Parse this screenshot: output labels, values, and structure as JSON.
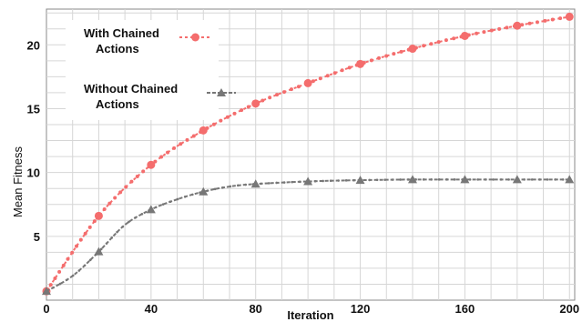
{
  "chart_data": {
    "type": "line",
    "title": "",
    "xlabel": "Iteration",
    "ylabel": "Mean Fitness",
    "xlim": [
      0,
      202
    ],
    "ylim": [
      0,
      22.8
    ],
    "xticks": [
      0,
      40,
      80,
      120,
      160,
      200
    ],
    "yticks": [
      5,
      10,
      15,
      20
    ],
    "grid": true,
    "legend_position": "top-left",
    "series": [
      {
        "name": "With Chained Actions",
        "color": "#f46d6d",
        "marker": "circle",
        "x": [
          0,
          20,
          40,
          60,
          80,
          100,
          120,
          140,
          160,
          180,
          200
        ],
        "y": [
          0.7,
          6.6,
          10.6,
          13.3,
          15.4,
          17.0,
          18.5,
          19.7,
          20.7,
          21.5,
          22.2
        ]
      },
      {
        "name": "Without Chained Actions",
        "color": "#777777",
        "marker": "triangle",
        "x": [
          0,
          10,
          20,
          30,
          40,
          50,
          60,
          70,
          80,
          100,
          120,
          140,
          160,
          180,
          200
        ],
        "y": [
          0.7,
          1.9,
          3.8,
          5.9,
          7.1,
          7.9,
          8.5,
          8.9,
          9.1,
          9.3,
          9.4,
          9.45,
          9.45,
          9.45,
          9.45
        ]
      }
    ]
  }
}
